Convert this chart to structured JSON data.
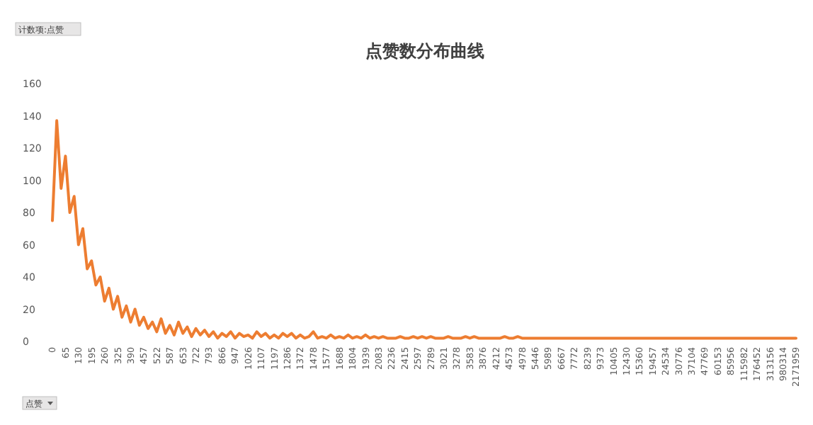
{
  "chart_data": {
    "type": "line",
    "title": "点赞数分布曲线",
    "annotations": [
      "计数项:点赞",
      "点赞"
    ],
    "categories": [
      "0",
      null,
      null,
      "65",
      null,
      null,
      "130",
      null,
      null,
      "195",
      null,
      null,
      "260",
      null,
      null,
      "325",
      null,
      null,
      "390",
      null,
      null,
      "457",
      null,
      null,
      "522",
      null,
      null,
      "587",
      null,
      null,
      "653",
      null,
      null,
      "722",
      null,
      null,
      "793",
      null,
      null,
      "866",
      null,
      null,
      "947",
      null,
      null,
      "1026",
      null,
      null,
      "1107",
      null,
      null,
      "1197",
      null,
      null,
      "1286",
      null,
      null,
      "1372",
      null,
      null,
      "1478",
      null,
      null,
      "1577",
      null,
      null,
      "1688",
      null,
      null,
      "1804",
      null,
      null,
      "1939",
      null,
      null,
      "2083",
      null,
      null,
      "2236",
      null,
      null,
      "2415",
      null,
      null,
      "2597",
      null,
      null,
      "2789",
      null,
      null,
      "3021",
      null,
      null,
      "3278",
      null,
      null,
      "3583",
      null,
      null,
      "3876",
      null,
      null,
      "4212",
      null,
      null,
      "4573",
      null,
      null,
      "4978",
      null,
      null,
      "5446",
      null,
      null,
      "5989",
      null,
      null,
      "6667",
      null,
      null,
      "7772",
      null,
      null,
      "8239",
      null,
      null,
      "9373",
      null,
      null,
      "10405",
      null,
      null,
      "12430",
      null,
      null,
      "15360",
      null,
      null,
      "19457",
      null,
      null,
      "24534",
      null,
      null,
      "30776",
      null,
      null,
      "37104",
      null,
      null,
      "47769",
      null,
      null,
      "60153",
      null,
      null,
      "85956",
      null,
      null,
      "115982",
      null,
      null,
      "176452",
      null,
      null,
      "313156",
      null,
      null,
      "980314",
      null,
      null,
      "2171959"
    ],
    "values": [
      75,
      137,
      95,
      115,
      80,
      90,
      60,
      70,
      45,
      50,
      35,
      40,
      25,
      33,
      20,
      28,
      15,
      22,
      12,
      20,
      10,
      15,
      8,
      12,
      6,
      14,
      5,
      10,
      4,
      12,
      5,
      9,
      3,
      8,
      4,
      7,
      3,
      6,
      2,
      5,
      3,
      6,
      2,
      5,
      3,
      4,
      2,
      6,
      3,
      5,
      2,
      4,
      2,
      5,
      3,
      5,
      2,
      4,
      2,
      3,
      6,
      2,
      3,
      2,
      4,
      2,
      3,
      2,
      4,
      2,
      3,
      2,
      4,
      2,
      3,
      2,
      3,
      2,
      2,
      2,
      3,
      2,
      2,
      3,
      2,
      3,
      2,
      3,
      2,
      2,
      2,
      3,
      2,
      2,
      2,
      3,
      2,
      3,
      2,
      2,
      2,
      2,
      2,
      2,
      3,
      2,
      2,
      3,
      2,
      2,
      2,
      2,
      2,
      2,
      2,
      2,
      2,
      2,
      2,
      2,
      2,
      2,
      2,
      2,
      2,
      2,
      2,
      2,
      2,
      2,
      2,
      2,
      2,
      2,
      2,
      2,
      2,
      2,
      2,
      2,
      2,
      2,
      2,
      2,
      2,
      2,
      2,
      2,
      2,
      2,
      2,
      2,
      2,
      2,
      2,
      2,
      2,
      2,
      2,
      2,
      2,
      2,
      2,
      2,
      2,
      2,
      2,
      2,
      2,
      2,
      2,
      2
    ],
    "color": "#ed7d31",
    "ylim": [
      0,
      160
    ],
    "yticks": [
      0,
      20,
      40,
      60,
      80,
      100,
      120,
      140,
      160
    ],
    "grid": false
  }
}
